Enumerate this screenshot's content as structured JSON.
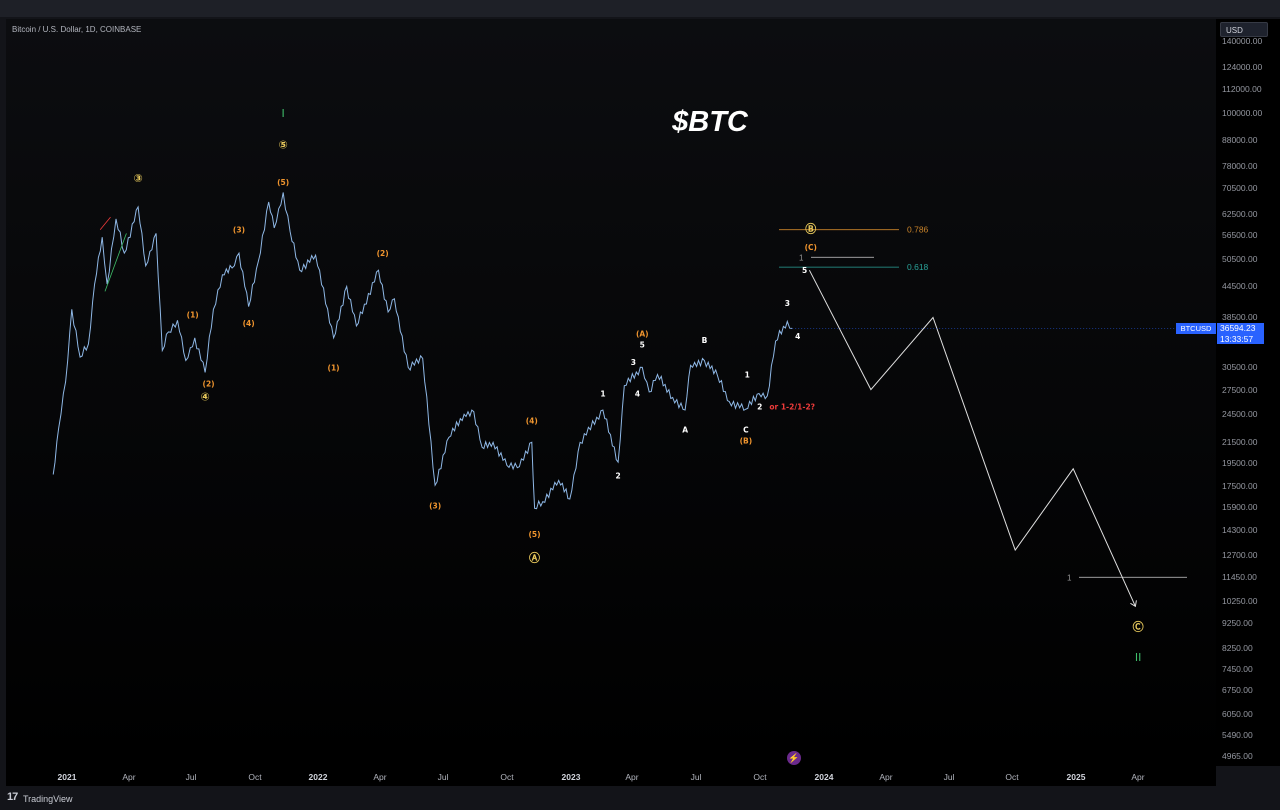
{
  "header": {
    "symbol": "Bitcoin / U.S. Dollar, 1D, COINBASE",
    "title": "$BTC"
  },
  "price_scale": {
    "currency_button": "USD",
    "ticks": [
      "140000.00",
      "124000.00",
      "112000.00",
      "100000.00",
      "88000.00",
      "78000.00",
      "70500.00",
      "62500.00",
      "56500.00",
      "50500.00",
      "44500.00",
      "38500.00",
      "30500.00",
      "27500.00",
      "24500.00",
      "21500.00",
      "19500.00",
      "17500.00",
      "15900.00",
      "14300.00",
      "12700.00",
      "11450.00",
      "10250.00",
      "9250.00",
      "8250.00",
      "7450.00",
      "6750.00",
      "6050.00",
      "5490.00",
      "4965.00"
    ]
  },
  "time_scale": {
    "ticks": [
      {
        "label": "2021",
        "year": true
      },
      {
        "label": "Apr",
        "year": false
      },
      {
        "label": "Jul",
        "year": false
      },
      {
        "label": "Oct",
        "year": false
      },
      {
        "label": "2022",
        "year": true
      },
      {
        "label": "Apr",
        "year": false
      },
      {
        "label": "Jul",
        "year": false
      },
      {
        "label": "Oct",
        "year": false
      },
      {
        "label": "2023",
        "year": true
      },
      {
        "label": "Apr",
        "year": false
      },
      {
        "label": "Jul",
        "year": false
      },
      {
        "label": "Oct",
        "year": false
      },
      {
        "label": "2024",
        "year": true
      },
      {
        "label": "Apr",
        "year": false
      },
      {
        "label": "Jul",
        "year": false
      },
      {
        "label": "Oct",
        "year": false
      },
      {
        "label": "2025",
        "year": true
      },
      {
        "label": "Apr",
        "year": false
      }
    ]
  },
  "last_price": {
    "ticker": "BTCUSD",
    "value": "36594.23",
    "countdown": "13:33:57"
  },
  "footer": {
    "brand_mark": "17",
    "brand": "TradingView"
  },
  "colors": {
    "price_line": "#8fb8e6",
    "projection": "#e0e0e0",
    "orange_label": "#f0952e",
    "yellow_label": "#e8c95c",
    "white_label": "#ffffff",
    "green": "#3fbf6a",
    "red": "#ef3b3b",
    "fib_786": "#c9832a",
    "fib_618": "#2aa39a",
    "accent": "#2962ff"
  },
  "chart_data": {
    "type": "line",
    "title": "$BTC",
    "xlabel": "",
    "ylabel": "",
    "y_scale": "log",
    "ylim": [
      4965,
      140000
    ],
    "series": [
      {
        "values": [
          [
            "2020-12-12",
            18500
          ],
          [
            "2020-12-20",
            23000
          ],
          [
            "2020-12-30",
            28500
          ],
          [
            "2021-01-08",
            40000
          ],
          [
            "2021-01-20",
            32000
          ],
          [
            "2021-02-01",
            34000
          ],
          [
            "2021-02-10",
            45000
          ],
          [
            "2021-02-21",
            56000
          ],
          [
            "2021-02-28",
            45000
          ],
          [
            "2021-03-13",
            61000
          ],
          [
            "2021-03-25",
            52000
          ],
          [
            "2021-04-14",
            64500
          ],
          [
            "2021-04-25",
            49000
          ],
          [
            "2021-05-10",
            57000
          ],
          [
            "2021-05-19",
            33000
          ],
          [
            "2021-05-28",
            36000
          ],
          [
            "2021-06-10",
            38000
          ],
          [
            "2021-06-22",
            31500
          ],
          [
            "2021-07-05",
            35000
          ],
          [
            "2021-07-20",
            29800
          ],
          [
            "2021-08-01",
            40000
          ],
          [
            "2021-08-14",
            47000
          ],
          [
            "2021-08-28",
            48500
          ],
          [
            "2021-09-07",
            52000
          ],
          [
            "2021-09-21",
            40500
          ],
          [
            "2021-10-05",
            50000
          ],
          [
            "2021-10-20",
            66000
          ],
          [
            "2021-10-28",
            58500
          ],
          [
            "2021-11-10",
            69000
          ],
          [
            "2021-11-20",
            57500
          ],
          [
            "2021-12-04",
            48000
          ],
          [
            "2021-12-27",
            51500
          ],
          [
            "2022-01-22",
            35000
          ],
          [
            "2022-02-10",
            44500
          ],
          [
            "2022-02-24",
            37000
          ],
          [
            "2022-03-28",
            48000
          ],
          [
            "2022-04-11",
            39500
          ],
          [
            "2022-04-20",
            42000
          ],
          [
            "2022-05-10",
            30500
          ],
          [
            "2022-05-31",
            31800
          ],
          [
            "2022-06-18",
            17600
          ],
          [
            "2022-07-08",
            22000
          ],
          [
            "2022-07-30",
            24500
          ],
          [
            "2022-08-13",
            24800
          ],
          [
            "2022-08-25",
            21000
          ],
          [
            "2022-09-10",
            21500
          ],
          [
            "2022-09-30",
            19300
          ],
          [
            "2022-10-15",
            19100
          ],
          [
            "2022-11-05",
            21500
          ],
          [
            "2022-11-09",
            15800
          ],
          [
            "2022-11-21",
            16300
          ],
          [
            "2022-12-14",
            18000
          ],
          [
            "2022-12-30",
            16500
          ],
          [
            "2023-01-14",
            21500
          ],
          [
            "2023-02-16",
            25000
          ],
          [
            "2023-03-10",
            19600
          ],
          [
            "2023-03-19",
            28000
          ],
          [
            "2023-04-14",
            30500
          ],
          [
            "2023-04-24",
            27200
          ],
          [
            "2023-05-06",
            29500
          ],
          [
            "2023-05-28",
            26500
          ],
          [
            "2023-06-15",
            25000
          ],
          [
            "2023-06-23",
            30800
          ],
          [
            "2023-07-13",
            31500
          ],
          [
            "2023-08-01",
            29300
          ],
          [
            "2023-08-18",
            26000
          ],
          [
            "2023-09-11",
            25100
          ],
          [
            "2023-09-30",
            27000
          ],
          [
            "2023-10-12",
            26700
          ],
          [
            "2023-10-24",
            34500
          ],
          [
            "2023-11-10",
            37800
          ],
          [
            "2023-11-17",
            36594
          ]
        ]
      },
      {
        "values": [
          [
            "2023-12-12",
            48000
          ],
          [
            "2024-03-10",
            27500
          ],
          [
            "2024-06-08",
            38500
          ],
          [
            "2024-10-05",
            13000
          ],
          [
            "2024-12-28",
            19000
          ],
          [
            "2025-03-28",
            10000
          ]
        ]
      }
    ],
    "fib_levels": [
      {
        "label": "0.786",
        "price": 58000
      },
      {
        "label": "0.618",
        "price": 48700
      }
    ],
    "horizontal_lines": [
      {
        "label": "1",
        "price": 51000
      },
      {
        "label": "1",
        "price": 11450
      }
    ],
    "wave_labels": [
      {
        "text": "③",
        "date": "2021-04-14",
        "price": 73500,
        "color": "yellow",
        "circled": true
      },
      {
        "text": "④",
        "date": "2021-07-20",
        "price": 26500,
        "color": "yellow",
        "circled": true
      },
      {
        "text": "⑤",
        "date": "2021-11-10",
        "price": 86000,
        "color": "yellow",
        "circled": true
      },
      {
        "text": "(5)",
        "date": "2021-11-10",
        "price": 72500,
        "color": "orange",
        "circled": false
      },
      {
        "text": "(1)",
        "date": "2021-07-02",
        "price": 39000,
        "color": "orange",
        "circled": false
      },
      {
        "text": "(2)",
        "date": "2021-07-25",
        "price": 28300,
        "color": "orange",
        "circled": false
      },
      {
        "text": "(3)",
        "date": "2021-09-07",
        "price": 58000,
        "color": "orange",
        "circled": false
      },
      {
        "text": "(4)",
        "date": "2021-09-21",
        "price": 37500,
        "color": "orange",
        "circled": false
      },
      {
        "text": "(1)",
        "date": "2022-01-22",
        "price": 30500,
        "color": "orange",
        "circled": false
      },
      {
        "text": "(2)",
        "date": "2022-04-03",
        "price": 52000,
        "color": "orange",
        "circled": false
      },
      {
        "text": "(3)",
        "date": "2022-06-18",
        "price": 16000,
        "color": "orange",
        "circled": false
      },
      {
        "text": "(4)",
        "date": "2022-11-05",
        "price": 23800,
        "color": "orange",
        "circled": false
      },
      {
        "text": "(5)",
        "date": "2022-11-09",
        "price": 14000,
        "color": "orange",
        "circled": false
      },
      {
        "text": "Ⓐ",
        "date": "2022-11-09",
        "price": 12500,
        "color": "yellow",
        "circled": true
      },
      {
        "text": "1",
        "date": "2023-02-16",
        "price": 27000,
        "color": "white",
        "circled": false
      },
      {
        "text": "2",
        "date": "2023-03-10",
        "price": 18400,
        "color": "white",
        "circled": false
      },
      {
        "text": "3",
        "date": "2023-04-01",
        "price": 31300,
        "color": "white",
        "circled": false
      },
      {
        "text": "4",
        "date": "2023-04-07",
        "price": 27000,
        "color": "white",
        "circled": false
      },
      {
        "text": "5",
        "date": "2023-04-14",
        "price": 33900,
        "color": "white",
        "circled": false
      },
      {
        "text": "(A)",
        "date": "2023-04-14",
        "price": 35700,
        "color": "orange",
        "circled": false
      },
      {
        "text": "A",
        "date": "2023-06-15",
        "price": 22800,
        "color": "white",
        "circled": false
      },
      {
        "text": "B",
        "date": "2023-07-13",
        "price": 34700,
        "color": "white",
        "circled": false
      },
      {
        "text": "C",
        "date": "2023-09-11",
        "price": 22800,
        "color": "white",
        "circled": false
      },
      {
        "text": "(B)",
        "date": "2023-09-11",
        "price": 21700,
        "color": "orange",
        "circled": false
      },
      {
        "text": "1",
        "date": "2023-09-13",
        "price": 29500,
        "color": "white",
        "circled": false
      },
      {
        "text": "2",
        "date": "2023-10-01",
        "price": 25400,
        "color": "white",
        "circled": false
      },
      {
        "text": "or 1-2/1-2?",
        "date": "2023-10-15",
        "price": 25400,
        "color": "red",
        "circled": false
      },
      {
        "text": "3",
        "date": "2023-11-10",
        "price": 41200,
        "color": "white",
        "circled": false
      },
      {
        "text": "4",
        "date": "2023-11-25",
        "price": 35300,
        "color": "white",
        "circled": false
      },
      {
        "text": "Ⓑ",
        "date": "2023-12-14",
        "price": 58000,
        "color": "yellow",
        "circled": true
      },
      {
        "text": "(C)",
        "date": "2023-12-14",
        "price": 53500,
        "color": "orange",
        "circled": false
      },
      {
        "text": "5",
        "date": "2023-12-05",
        "price": 48000,
        "color": "white",
        "circled": false
      },
      {
        "text": "Ⓒ",
        "date": "2025-04-01",
        "price": 9050,
        "color": "yellow",
        "circled": true
      }
    ],
    "degree_markers": [
      {
        "text": "I",
        "date": "2021-11-10",
        "price": 100000,
        "color": "green"
      },
      {
        "text": "II",
        "date": "2025-04-01",
        "price": 7900,
        "color": "green"
      }
    ]
  }
}
